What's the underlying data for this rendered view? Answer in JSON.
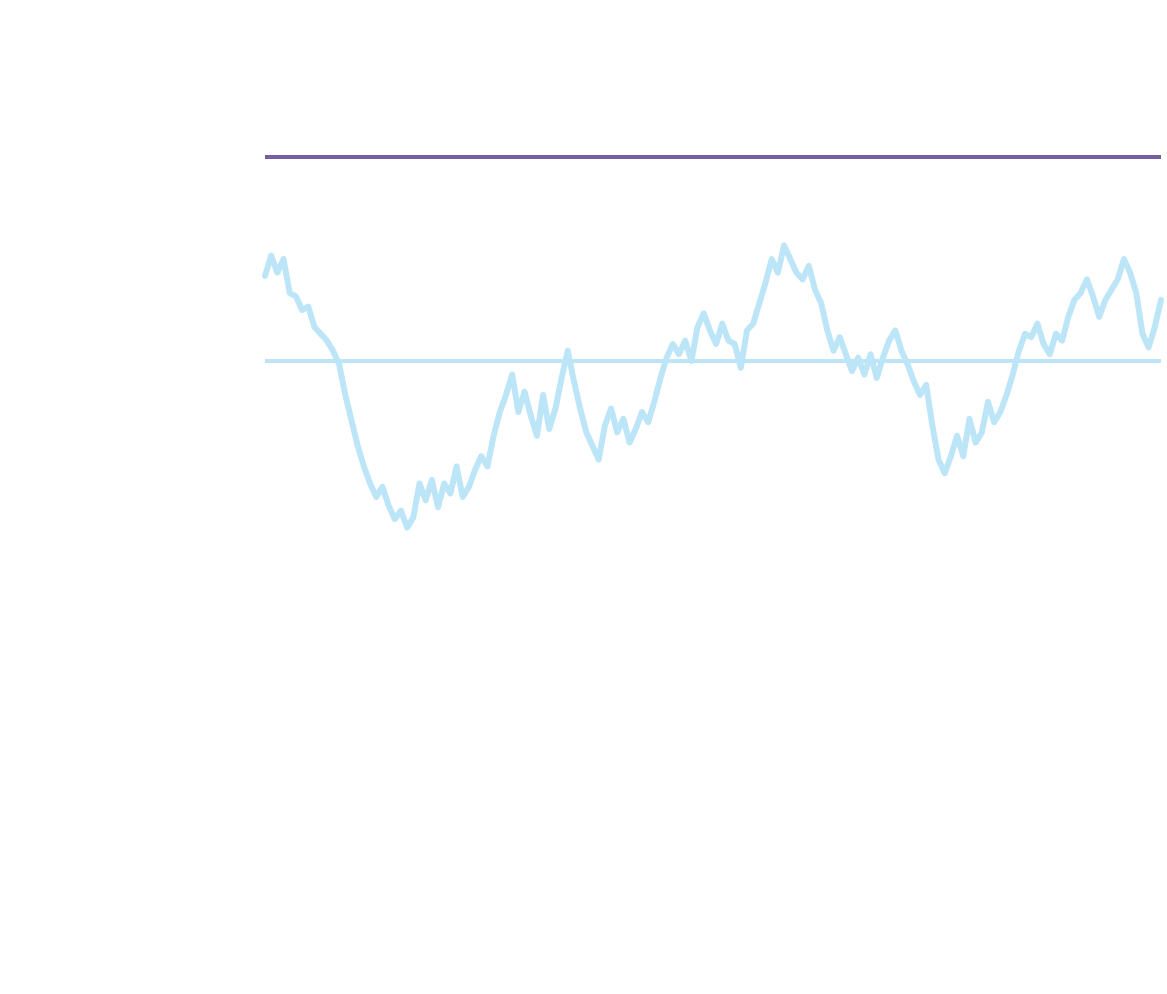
{
  "chart_data": {
    "type": "line",
    "title": "",
    "xlabel": "",
    "ylabel": "",
    "grid": false,
    "legend": "none",
    "ylim": [
      -1.2,
      1.2
    ],
    "colors": {
      "series": "#bde5f8",
      "baseline": "#bde5f8",
      "top_rule": "#765ea3"
    },
    "reference_lines": [
      {
        "name": "baseline",
        "y": 0.0
      },
      {
        "name": "top-rule",
        "y": 1.2
      }
    ],
    "series": [
      {
        "values": [
          0.5,
          0.62,
          0.52,
          0.6,
          0.4,
          0.38,
          0.3,
          0.32,
          0.2,
          0.16,
          0.12,
          0.06,
          -0.02,
          -0.2,
          -0.35,
          -0.5,
          -0.62,
          -0.72,
          -0.8,
          -0.74,
          -0.85,
          -0.93,
          -0.88,
          -0.98,
          -0.92,
          -0.72,
          -0.82,
          -0.7,
          -0.86,
          -0.72,
          -0.78,
          -0.62,
          -0.8,
          -0.74,
          -0.64,
          -0.56,
          -0.62,
          -0.44,
          -0.3,
          -0.2,
          -0.08,
          -0.3,
          -0.18,
          -0.32,
          -0.44,
          -0.2,
          -0.4,
          -0.28,
          -0.1,
          0.06,
          -0.12,
          -0.28,
          -0.42,
          -0.5,
          -0.58,
          -0.38,
          -0.28,
          -0.42,
          -0.34,
          -0.48,
          -0.4,
          -0.3,
          -0.36,
          -0.24,
          -0.1,
          0.02,
          0.1,
          0.04,
          0.12,
          0.0,
          0.2,
          0.28,
          0.18,
          0.1,
          0.22,
          0.12,
          0.1,
          -0.04,
          0.18,
          0.22,
          0.34,
          0.46,
          0.6,
          0.52,
          0.68,
          0.6,
          0.52,
          0.48,
          0.56,
          0.42,
          0.34,
          0.18,
          0.06,
          0.14,
          0.04,
          -0.06,
          0.02,
          -0.08,
          0.04,
          -0.1,
          0.02,
          0.12,
          0.18,
          0.06,
          -0.02,
          -0.12,
          -0.2,
          -0.14,
          -0.38,
          -0.58,
          -0.66,
          -0.56,
          -0.44,
          -0.56,
          -0.34,
          -0.48,
          -0.42,
          -0.24,
          -0.36,
          -0.3,
          -0.2,
          -0.08,
          0.06,
          0.16,
          0.14,
          0.22,
          0.1,
          0.04,
          0.16,
          0.12,
          0.26,
          0.36,
          0.4,
          0.48,
          0.38,
          0.26,
          0.36,
          0.42,
          0.48,
          0.6,
          0.52,
          0.4,
          0.16,
          0.08,
          0.2,
          0.36
        ]
      }
    ]
  }
}
